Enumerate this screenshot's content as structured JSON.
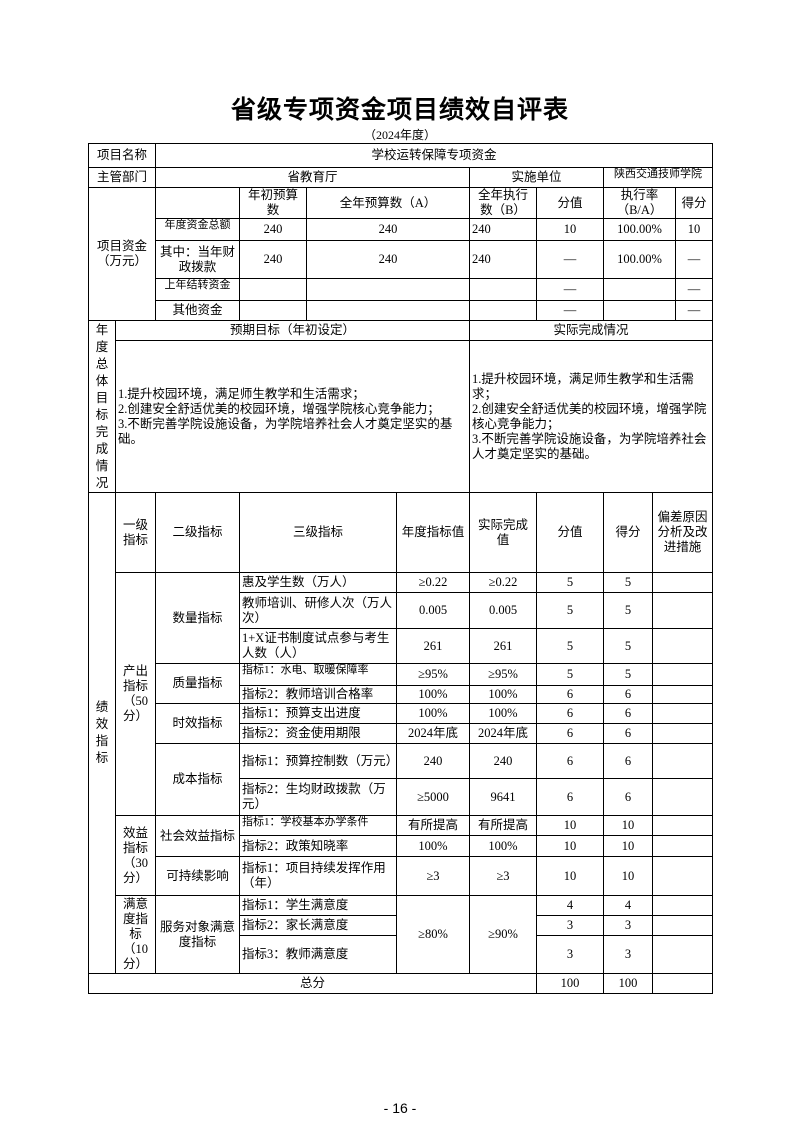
{
  "title": "省级专项资金项目绩效自评表",
  "subtitle": "（2024年度）",
  "project": {
    "name_label": "项目名称",
    "name": "学校运转保障专项资金",
    "dept_label": "主管部门",
    "dept": "省教育厅",
    "impl_label": "实施单位",
    "impl": "陕西交通技师学院"
  },
  "funds": {
    "label": "项目资金（万元）",
    "headers": [
      "年初预算数",
      "全年预算数（A）",
      "全年执行数（B）",
      "分值",
      "执行率（B/A）",
      "得分"
    ],
    "rows": [
      {
        "label": "年度资金总额",
        "initial": "240",
        "full": "240",
        "exec": "240",
        "score_value": "10",
        "rate": "100.00%",
        "score": "10"
      },
      {
        "label": "其中：当年财政拨款",
        "initial": "240",
        "full": "240",
        "exec": "240",
        "score_value": "—",
        "rate": "100.00%",
        "score": "—"
      },
      {
        "label": "上年结转资金",
        "initial": "",
        "full": "",
        "exec": "",
        "score_value": "—",
        "rate": "",
        "score": "—"
      },
      {
        "label": "其他资金",
        "initial": "",
        "full": "",
        "exec": "",
        "score_value": "—",
        "rate": "",
        "score": "—"
      }
    ]
  },
  "goals": {
    "label": "年度总体目标完成情况",
    "expected_header": "预期目标（年初设定）",
    "actual_header": "实际完成情况",
    "expected_text": "1.提升校园环境，满足师生教学和生活需求；\n2.创建安全舒适优美的校园环境，增强学院核心竞争能力；\n3.不断完善学院设施设备，为学院培养社会人才奠定坚实的基础。",
    "actual_text": "1.提升校园环境，满足师生教学和生活需求；\n2.创建安全舒适优美的校园环境，增强学院核心竞争能力；\n3.不断完善学院设施设备，为学院培养社会人才奠定坚实的基础。"
  },
  "perf": {
    "label": "绩效指标",
    "headers": [
      "一级指标",
      "二级指标",
      "三级指标",
      "年度指标值",
      "实际完成值",
      "分值",
      "得分",
      "偏差原因分析及改进措施"
    ],
    "level1": [
      "产出指标（50分）",
      "效益指标（30分）",
      "满意度指标（10分）"
    ],
    "level2": [
      "数量指标",
      "质量指标",
      "时效指标",
      "成本指标",
      "社会效益指标",
      "可持续影响",
      "服务对象满意度指标"
    ],
    "rows": [
      {
        "name": "惠及学生数（万人）",
        "target": "≥0.22",
        "actual": "≥0.22",
        "value": "5",
        "score": "5"
      },
      {
        "name": "教师培训、研修人次（万人次）",
        "target": "0.005",
        "actual": "0.005",
        "value": "5",
        "score": "5"
      },
      {
        "name": "1+X证书制度试点参与考生人数（人）",
        "target": "261",
        "actual": "261",
        "value": "5",
        "score": "5"
      },
      {
        "name": "指标1：水电、取暖保障率",
        "target": "≥95%",
        "actual": "≥95%",
        "value": "5",
        "score": "5"
      },
      {
        "name": "指标2：教师培训合格率",
        "target": "100%",
        "actual": "100%",
        "value": "6",
        "score": "6"
      },
      {
        "name": "指标1：预算支出进度",
        "target": "100%",
        "actual": "100%",
        "value": "6",
        "score": "6"
      },
      {
        "name": "指标2：资金使用期限",
        "target": "2024年底",
        "actual": "2024年底",
        "value": "6",
        "score": "6"
      },
      {
        "name": "指标1：预算控制数（万元）",
        "target": "240",
        "actual": "240",
        "value": "6",
        "score": "6"
      },
      {
        "name": "指标2：生均财政拨款（万元）",
        "target": "≥5000",
        "actual": "9641",
        "value": "6",
        "score": "6"
      },
      {
        "name": "指标1：学校基本办学条件",
        "target": "有所提高",
        "actual": "有所提高",
        "value": "10",
        "score": "10"
      },
      {
        "name": "指标2：政策知晓率",
        "target": "100%",
        "actual": "100%",
        "value": "10",
        "score": "10"
      },
      {
        "name": "指标1：项目持续发挥作用（年）",
        "target": "≥3",
        "actual": "≥3",
        "value": "10",
        "score": "10"
      },
      {
        "name": "指标1：学生满意度",
        "value": "4",
        "score": "4"
      },
      {
        "name": "指标2：家长满意度",
        "value": "3",
        "score": "3"
      },
      {
        "name": "指标3：教师满意度",
        "value": "3",
        "score": "3"
      }
    ],
    "satisfaction_target": "≥80%",
    "satisfaction_actual": "≥90%"
  },
  "total": {
    "label": "总分",
    "value": "100",
    "score": "100"
  },
  "page_number": "- 16 -"
}
